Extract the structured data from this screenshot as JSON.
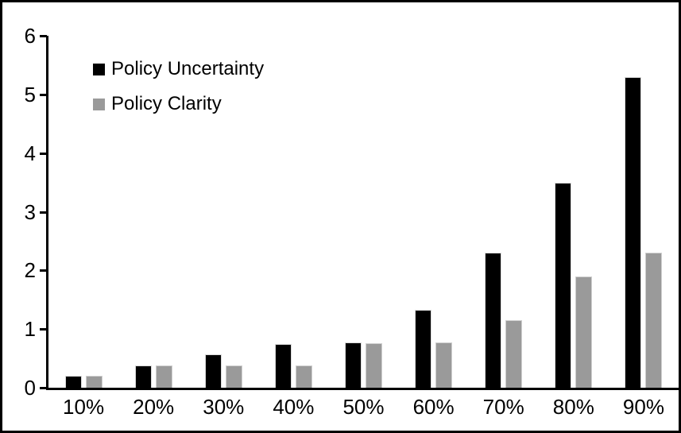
{
  "chart_data": {
    "type": "bar",
    "title": "",
    "xlabel": "",
    "ylabel": "",
    "categories": [
      "10%",
      "20%",
      "30%",
      "40%",
      "50%",
      "60%",
      "70%",
      "80%",
      "90%"
    ],
    "series": [
      {
        "name": "Policy Uncertainty",
        "color": "#000000",
        "values": [
          0.2,
          0.38,
          0.57,
          0.75,
          0.77,
          1.33,
          2.3,
          3.5,
          5.3
        ]
      },
      {
        "name": "Policy Clarity",
        "color": "#9a9a9a",
        "values": [
          0.2,
          0.38,
          0.38,
          0.38,
          0.76,
          0.77,
          1.15,
          1.9,
          2.3
        ]
      }
    ],
    "ylim": [
      0,
      6
    ],
    "yticks": [
      0,
      1,
      2,
      3,
      4,
      5,
      6
    ],
    "grid": false,
    "legend_position": "inside-top-left",
    "frame_color": "#000000",
    "background_color": "#ffffff"
  }
}
